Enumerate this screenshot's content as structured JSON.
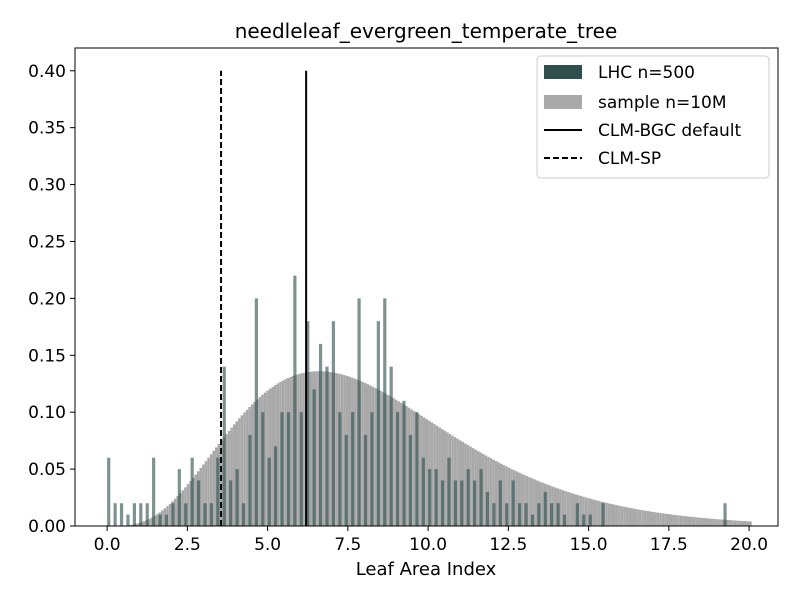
{
  "chart_data": {
    "type": "bar",
    "title": "needleleaf_evergreen_temperate_tree",
    "xlabel": "Leaf Area Index",
    "ylabel": "",
    "xlim": [
      -1.0,
      20.9
    ],
    "ylim": [
      0.0,
      0.42
    ],
    "xticks": [
      0.0,
      2.5,
      5.0,
      7.5,
      10.0,
      12.5,
      15.0,
      17.5,
      20.0
    ],
    "xtick_labels": [
      "0.0",
      "2.5",
      "5.0",
      "7.5",
      "10.0",
      "12.5",
      "15.0",
      "17.5",
      "20.0"
    ],
    "yticks": [
      0.0,
      0.05,
      0.1,
      0.15,
      0.2,
      0.25,
      0.3,
      0.35,
      0.4
    ],
    "ytick_labels": [
      "0.00",
      "0.05",
      "0.10",
      "0.15",
      "0.20",
      "0.25",
      "0.30",
      "0.35",
      "0.40"
    ],
    "grid": false,
    "legend_position": "top-right",
    "series": [
      {
        "name": "LHC n=500",
        "kind": "histogram",
        "color": "#2f4f4f",
        "bin_width": 0.1,
        "bins": [
          [
            0.0,
            0.06
          ],
          [
            0.2,
            0.02
          ],
          [
            0.4,
            0.02
          ],
          [
            0.6,
            0.01
          ],
          [
            0.8,
            0.02
          ],
          [
            1.0,
            0.02
          ],
          [
            1.2,
            0.02
          ],
          [
            1.4,
            0.06
          ],
          [
            1.6,
            0.01
          ],
          [
            1.8,
            0.01
          ],
          [
            2.0,
            0.02
          ],
          [
            2.2,
            0.05
          ],
          [
            2.4,
            0.02
          ],
          [
            2.6,
            0.06
          ],
          [
            2.8,
            0.04
          ],
          [
            3.0,
            0.02
          ],
          [
            3.2,
            0.02
          ],
          [
            3.4,
            0.06
          ],
          [
            3.6,
            0.14
          ],
          [
            3.8,
            0.04
          ],
          [
            4.0,
            0.05
          ],
          [
            4.2,
            0.02
          ],
          [
            4.4,
            0.08
          ],
          [
            4.6,
            0.2
          ],
          [
            4.8,
            0.1
          ],
          [
            5.0,
            0.06
          ],
          [
            5.2,
            0.07
          ],
          [
            5.4,
            0.1
          ],
          [
            5.6,
            0.1
          ],
          [
            5.8,
            0.22
          ],
          [
            6.0,
            0.1
          ],
          [
            6.2,
            0.18
          ],
          [
            6.4,
            0.12
          ],
          [
            6.6,
            0.16
          ],
          [
            6.8,
            0.14
          ],
          [
            7.0,
            0.18
          ],
          [
            7.2,
            0.1
          ],
          [
            7.4,
            0.08
          ],
          [
            7.6,
            0.1
          ],
          [
            7.8,
            0.2
          ],
          [
            8.0,
            0.08
          ],
          [
            8.2,
            0.1
          ],
          [
            8.4,
            0.18
          ],
          [
            8.6,
            0.2
          ],
          [
            8.8,
            0.14
          ],
          [
            9.0,
            0.1
          ],
          [
            9.2,
            0.11
          ],
          [
            9.4,
            0.08
          ],
          [
            9.6,
            0.1
          ],
          [
            9.8,
            0.06
          ],
          [
            10.0,
            0.05
          ],
          [
            10.2,
            0.05
          ],
          [
            10.4,
            0.04
          ],
          [
            10.6,
            0.06
          ],
          [
            10.8,
            0.04
          ],
          [
            11.0,
            0.04
          ],
          [
            11.2,
            0.05
          ],
          [
            11.4,
            0.04
          ],
          [
            11.6,
            0.05
          ],
          [
            11.8,
            0.03
          ],
          [
            12.0,
            0.02
          ],
          [
            12.2,
            0.04
          ],
          [
            12.4,
            0.02
          ],
          [
            12.6,
            0.04
          ],
          [
            12.8,
            0.02
          ],
          [
            13.0,
            0.02
          ],
          [
            13.2,
            0.01
          ],
          [
            13.4,
            0.02
          ],
          [
            13.6,
            0.03
          ],
          [
            13.8,
            0.02
          ],
          [
            14.0,
            0.02
          ],
          [
            14.2,
            0.01
          ],
          [
            14.6,
            0.02
          ],
          [
            14.8,
            0.01
          ],
          [
            15.0,
            0.01
          ],
          [
            15.4,
            0.02
          ],
          [
            19.2,
            0.02
          ]
        ]
      },
      {
        "name": "sample n=10M",
        "kind": "histogram",
        "color": "#a9a9a9",
        "bin_width": 0.08,
        "distribution": {
          "type": "gamma-like",
          "peak_x": 6.6,
          "peak_y": 0.136,
          "x_min": 0.0,
          "x_max": 20.0
        }
      },
      {
        "name": "CLM-BGC default",
        "kind": "vline",
        "style": "solid",
        "color": "#000000",
        "x": 6.2,
        "ymax": 0.4
      },
      {
        "name": "CLM-SP",
        "kind": "vline",
        "style": "dashed",
        "color": "#000000",
        "x": 3.55,
        "ymax": 0.4
      }
    ]
  }
}
